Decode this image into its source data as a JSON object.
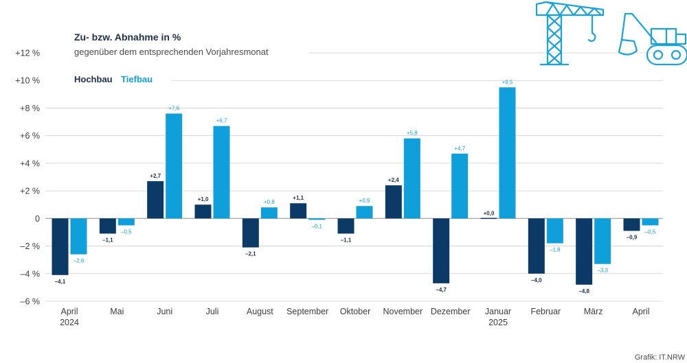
{
  "chart_data": {
    "type": "bar",
    "title": "Zu- bzw. Abnahme in %",
    "subtitle": "gegenüber dem entsprechenden Vorjahresmonat",
    "categories": [
      {
        "line1": "April",
        "line2": "2024"
      },
      {
        "line1": "Mai",
        "line2": ""
      },
      {
        "line1": "Juni",
        "line2": ""
      },
      {
        "line1": "Juli",
        "line2": ""
      },
      {
        "line1": "August",
        "line2": ""
      },
      {
        "line1": "September",
        "line2": ""
      },
      {
        "line1": "Oktober",
        "line2": ""
      },
      {
        "line1": "November",
        "line2": ""
      },
      {
        "line1": "Dezember",
        "line2": ""
      },
      {
        "line1": "Januar",
        "line2": "2025"
      },
      {
        "line1": "Februar",
        "line2": ""
      },
      {
        "line1": "März",
        "line2": ""
      },
      {
        "line1": "April",
        "line2": ""
      }
    ],
    "series": [
      {
        "name": "Hochbau",
        "color": "#0b3a66",
        "label_color": "#1f2f4a",
        "values": [
          -4.1,
          -1.1,
          2.7,
          1.0,
          -2.1,
          1.1,
          -1.1,
          2.4,
          -4.7,
          0.0,
          -4.0,
          -4.8,
          -0.9
        ],
        "labels": [
          "–4,1",
          "–1,1",
          "+2,7",
          "+1,0",
          "–2,1",
          "+1,1",
          "–1,1",
          "+2,4",
          "–4,7",
          "+0,0",
          "–4,0",
          "–4,8",
          "–0,9"
        ]
      },
      {
        "name": "Tiefbau",
        "color": "#0fa0dc",
        "label_color": "#0fa0dc",
        "values": [
          -2.6,
          -0.5,
          7.6,
          6.7,
          0.8,
          -0.1,
          0.9,
          5.8,
          4.7,
          9.5,
          -1.8,
          -3.3,
          -0.5
        ],
        "labels": [
          "–2,6",
          "–0,5",
          "+7,6",
          "+6,7",
          "+0,8",
          "–0,1",
          "+0,9",
          "+5,8",
          "+4,7",
          "+9,5",
          "–1,8",
          "–3,3",
          "–0,5"
        ]
      }
    ],
    "yticks": [
      {
        "value": 12,
        "label": "+12 %"
      },
      {
        "value": 10,
        "label": "+10 %"
      },
      {
        "value": 8,
        "label": "+8 %"
      },
      {
        "value": 6,
        "label": "+6 %"
      },
      {
        "value": 4,
        "label": "+4 %"
      },
      {
        "value": 2,
        "label": "+2 %"
      },
      {
        "value": 0,
        "label": "0"
      },
      {
        "value": -2,
        "label": "–2 %"
      },
      {
        "value": -4,
        "label": "–4 %"
      },
      {
        "value": -6,
        "label": "–6 %"
      }
    ],
    "ylim": [
      -6,
      12
    ],
    "grid": true,
    "legend_position": "top-left"
  },
  "credit": "Grafik: IT.NRW",
  "icons": [
    "tower-crane-icon",
    "excavator-icon"
  ],
  "colors": {
    "grid": "#cfcfcf",
    "axis": "#9a9a9a",
    "icon": "#19a3dd"
  }
}
